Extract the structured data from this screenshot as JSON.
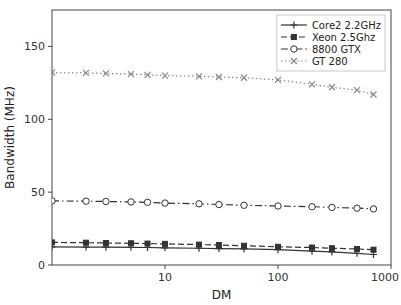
{
  "chart_data": {
    "type": "line",
    "xlabel": "DM",
    "ylabel": "Bandwidth (MHz)",
    "log": "x",
    "x": [
      1,
      2,
      3,
      5,
      7,
      10,
      20,
      30,
      50,
      100,
      200,
      300,
      500,
      700
    ],
    "xlim": [
      1,
      1000
    ],
    "xticks": [
      10,
      100,
      1000
    ],
    "ylim": [
      0,
      175
    ],
    "yticks": [
      0,
      50,
      100,
      150
    ],
    "grid": false,
    "legend": "upper right",
    "series": [
      {
        "name": "Core2 2.2GHz",
        "color": "#333333",
        "line_style": "solid",
        "marker": "plus",
        "values": [
          12.5,
          12.3,
          12.2,
          12.1,
          12.0,
          11.8,
          11.5,
          11.3,
          11.0,
          10.5,
          9.5,
          9.0,
          8.0,
          7.2
        ]
      },
      {
        "name": "Xeon 2.5Ghz",
        "color": "#333333",
        "line_style": "dashed",
        "marker": "square",
        "values": [
          15.5,
          15.3,
          15.1,
          14.9,
          14.7,
          14.5,
          14.0,
          13.7,
          13.2,
          12.5,
          12.0,
          11.5,
          11.0,
          10.5
        ]
      },
      {
        "name": "8800 GTX",
        "color": "#333333",
        "line_style": "dashdot",
        "marker": "circle",
        "values": [
          44.0,
          43.8,
          43.6,
          43.3,
          43.0,
          42.5,
          42.0,
          41.5,
          41.0,
          40.5,
          40.0,
          39.5,
          39.0,
          38.5
        ]
      },
      {
        "name": "GT 280",
        "color": "#888888",
        "line_style": "dotted",
        "marker": "x",
        "values": [
          132.0,
          131.8,
          131.5,
          131.0,
          130.5,
          130.0,
          129.5,
          129.0,
          128.5,
          127.0,
          124.0,
          122.0,
          120.0,
          117.0
        ]
      }
    ]
  }
}
